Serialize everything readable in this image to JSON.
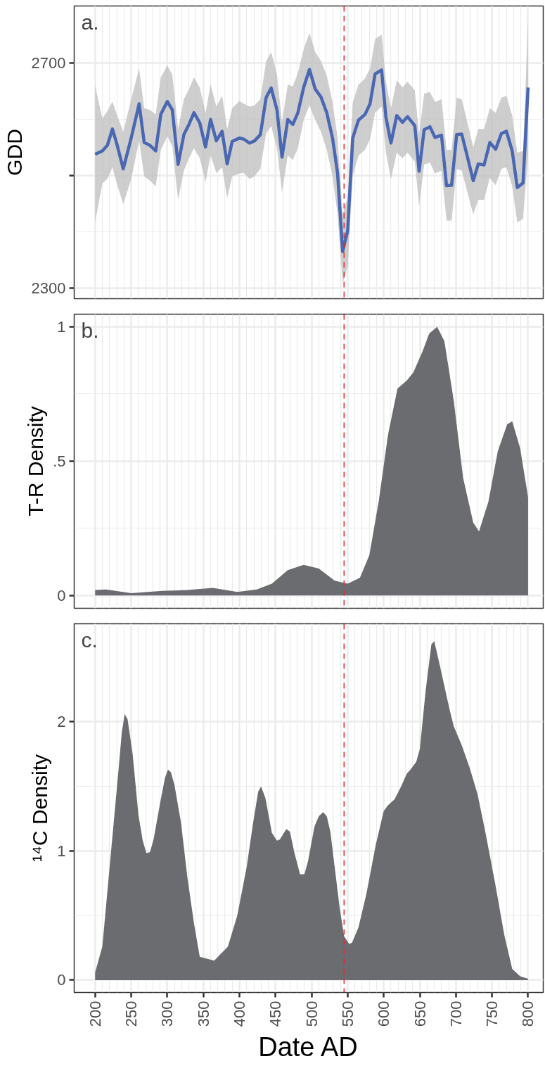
{
  "chart_data": [
    {
      "type": "line",
      "annotations": [
        "a."
      ],
      "ylabel": "GDD",
      "xlim": [
        171,
        821
      ],
      "ylim": [
        2281,
        2802
      ],
      "xticks": [
        200,
        250,
        300,
        350,
        400,
        450,
        500,
        550,
        600,
        650,
        700,
        750,
        800
      ],
      "yticks": [
        2300,
        {
          "value": 2500,
          "label": null
        },
        2700
      ],
      "tick_labels": "y",
      "grid": true,
      "ref_lines": [
        {
          "axis": "x",
          "value": 545,
          "color": "#e8262a",
          "line_style": "dashed"
        }
      ],
      "x": [
        200,
        210,
        217,
        224,
        230,
        239,
        250,
        261,
        268,
        276,
        284,
        291,
        300,
        307,
        315,
        323,
        330,
        337,
        345,
        353,
        360,
        368,
        376,
        383,
        390,
        400,
        406,
        414,
        421,
        429,
        437,
        444,
        452,
        459,
        467,
        474,
        481,
        489,
        497,
        505,
        513,
        521,
        529,
        536,
        543,
        550,
        557,
        565,
        574,
        581,
        588,
        597,
        603,
        610,
        618,
        626,
        633,
        643,
        649,
        656,
        664,
        671,
        680,
        687,
        694,
        701,
        708,
        716,
        724,
        731,
        739,
        747,
        755,
        763,
        770,
        778,
        785,
        793,
        800
      ],
      "series": [
        {
          "color": "#4a67b2",
          "values": [
            2538,
            2544,
            2554,
            2583,
            2557,
            2512,
            2567,
            2628,
            2559,
            2554,
            2544,
            2609,
            2632,
            2617,
            2520,
            2573,
            2591,
            2612,
            2594,
            2551,
            2600,
            2562,
            2579,
            2521,
            2561,
            2567,
            2565,
            2558,
            2562,
            2573,
            2639,
            2656,
            2617,
            2533,
            2600,
            2591,
            2612,
            2657,
            2689,
            2654,
            2640,
            2612,
            2567,
            2504,
            2365,
            2402,
            2567,
            2599,
            2609,
            2628,
            2681,
            2688,
            2604,
            2558,
            2607,
            2595,
            2605,
            2589,
            2508,
            2582,
            2587,
            2568,
            2572,
            2482,
            2483,
            2573,
            2574,
            2533,
            2491,
            2521,
            2519,
            2559,
            2547,
            2575,
            2579,
            2544,
            2479,
            2487,
            2657
          ],
          "lower": [
            2417,
            2486,
            2494,
            2515,
            2486,
            2449,
            2494,
            2562,
            2499,
            2491,
            2481,
            2546,
            2570,
            2552,
            2457,
            2509,
            2531,
            2549,
            2531,
            2489,
            2536,
            2505,
            2515,
            2460,
            2499,
            2504,
            2505,
            2494,
            2499,
            2512,
            2575,
            2588,
            2549,
            2470,
            2536,
            2528,
            2549,
            2599,
            2625,
            2599,
            2578,
            2546,
            2499,
            2431,
            2309,
            2338,
            2499,
            2536,
            2546,
            2565,
            2612,
            2623,
            2541,
            2494,
            2541,
            2531,
            2541,
            2525,
            2446,
            2520,
            2523,
            2504,
            2509,
            2420,
            2420,
            2512,
            2509,
            2470,
            2431,
            2457,
            2457,
            2496,
            2483,
            2512,
            2515,
            2481,
            2417,
            2423,
            2536
          ],
          "upper": [
            2660,
            2602,
            2615,
            2632,
            2609,
            2578,
            2636,
            2691,
            2620,
            2617,
            2609,
            2675,
            2696,
            2680,
            2583,
            2636,
            2654,
            2675,
            2657,
            2612,
            2663,
            2623,
            2642,
            2583,
            2620,
            2633,
            2628,
            2623,
            2625,
            2636,
            2704,
            2720,
            2680,
            2596,
            2662,
            2659,
            2683,
            2725,
            2754,
            2720,
            2704,
            2678,
            2631,
            2567,
            2431,
            2462,
            2631,
            2662,
            2673,
            2691,
            2743,
            2751,
            2667,
            2620,
            2670,
            2657,
            2667,
            2652,
            2573,
            2646,
            2649,
            2631,
            2636,
            2546,
            2546,
            2639,
            2636,
            2594,
            2551,
            2583,
            2583,
            2620,
            2612,
            2639,
            2642,
            2607,
            2541,
            2544,
            2778
          ]
        }
      ]
    },
    {
      "type": "area",
      "annotations": [
        "b."
      ],
      "ylabel": "T-R Density",
      "xlim": [
        171,
        821
      ],
      "ylim": [
        -0.048,
        1.047
      ],
      "xticks": [
        200,
        250,
        300,
        350,
        400,
        450,
        500,
        550,
        600,
        650,
        700,
        750,
        800
      ],
      "yticks": [
        0,
        {
          "value": 0.5,
          "label": ".5"
        },
        1
      ],
      "tick_labels": "y",
      "grid": true,
      "ref_lines": [
        {
          "axis": "x",
          "value": 545,
          "color": "#e8262a",
          "line_style": "dashed"
        }
      ],
      "x": [
        200,
        215,
        250,
        293,
        328,
        363,
        397,
        424,
        445,
        467,
        489,
        510,
        532,
        550,
        567,
        580,
        593,
        606,
        619,
        632,
        641,
        654,
        663,
        674,
        684,
        697,
        710,
        724,
        732,
        745,
        758,
        771,
        778,
        789,
        800
      ],
      "series": [
        {
          "color": "#6b6c70",
          "values": [
            0.02,
            0.022,
            0.008,
            0.017,
            0.02,
            0.028,
            0.013,
            0.022,
            0.044,
            0.094,
            0.114,
            0.1,
            0.055,
            0.044,
            0.066,
            0.15,
            0.35,
            0.6,
            0.77,
            0.8,
            0.83,
            0.91,
            0.975,
            1.0,
            0.947,
            0.725,
            0.437,
            0.271,
            0.238,
            0.349,
            0.537,
            0.637,
            0.648,
            0.548,
            0.365
          ]
        }
      ]
    },
    {
      "type": "area",
      "annotations": [
        "c."
      ],
      "ylabel": "¹⁴C Density",
      "xlabel": "Date AD",
      "xlim": [
        171,
        821
      ],
      "ylim": [
        -0.096,
        2.76
      ],
      "xticks": [
        200,
        250,
        300,
        350,
        400,
        450,
        500,
        550,
        600,
        650,
        700,
        750,
        800
      ],
      "yticks": [
        0,
        1,
        2
      ],
      "grid": true,
      "ref_lines": [
        {
          "axis": "x",
          "value": 545,
          "color": "#e8262a",
          "line_style": "dashed"
        }
      ],
      "x": [
        200,
        210,
        221,
        232,
        237,
        241,
        245,
        252,
        260,
        266,
        271,
        276,
        281,
        291,
        297,
        301,
        305,
        310,
        319,
        328,
        337,
        345,
        365,
        384,
        397,
        410,
        419,
        426,
        430,
        436,
        445,
        452,
        456,
        465,
        470,
        476,
        484,
        490,
        495,
        504,
        510,
        516,
        521,
        526,
        532,
        539,
        545,
        552,
        556,
        565,
        576,
        589,
        600,
        606,
        615,
        624,
        632,
        637,
        645,
        650,
        658,
        666,
        670,
        678,
        691,
        697,
        708,
        719,
        730,
        741,
        754,
        767,
        778,
        789,
        800
      ],
      "series": [
        {
          "color": "#6b6c70",
          "values": [
            0.06,
            0.26,
            0.93,
            1.6,
            1.92,
            2.06,
            2.02,
            1.75,
            1.28,
            1.08,
            0.985,
            0.99,
            1.09,
            1.4,
            1.57,
            1.63,
            1.61,
            1.51,
            1.22,
            0.79,
            0.44,
            0.18,
            0.15,
            0.26,
            0.5,
            0.875,
            1.22,
            1.46,
            1.5,
            1.41,
            1.14,
            1.08,
            1.09,
            1.17,
            1.15,
            0.99,
            0.82,
            0.82,
            0.92,
            1.19,
            1.27,
            1.3,
            1.27,
            1.15,
            0.875,
            0.555,
            0.34,
            0.28,
            0.29,
            0.41,
            0.67,
            1.05,
            1.31,
            1.355,
            1.4,
            1.5,
            1.6,
            1.63,
            1.69,
            1.79,
            2.24,
            2.6,
            2.625,
            2.43,
            2.1,
            1.965,
            1.82,
            1.645,
            1.44,
            1.14,
            0.76,
            0.35,
            0.087,
            0.03,
            0.01
          ]
        }
      ]
    }
  ]
}
